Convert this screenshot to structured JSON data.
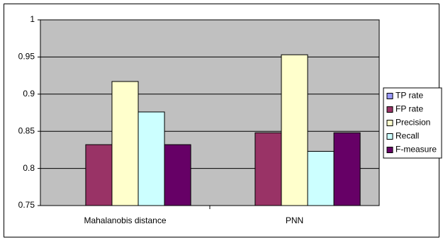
{
  "chart_data": {
    "type": "bar",
    "categories": [
      "Mahalanobis distance",
      "PNN"
    ],
    "series": [
      {
        "name": "TP rate",
        "color": "#9999ff",
        "values": [
          null,
          null
        ]
      },
      {
        "name": "FP rate",
        "color": "#993366",
        "values": [
          0.832,
          0.848
        ]
      },
      {
        "name": "Precision",
        "color": "#ffffcc",
        "values": [
          0.917,
          0.953
        ]
      },
      {
        "name": "Recall",
        "color": "#ccffff",
        "values": [
          0.876,
          0.823
        ]
      },
      {
        "name": "F-measure",
        "color": "#660066",
        "values": [
          0.832,
          0.848
        ]
      }
    ],
    "ylim": [
      0.75,
      1
    ],
    "yticks": [
      0.75,
      0.8,
      0.85,
      0.9,
      0.95,
      1
    ],
    "grid": true,
    "plot_background": "#c0c0c0",
    "legend": "right"
  }
}
